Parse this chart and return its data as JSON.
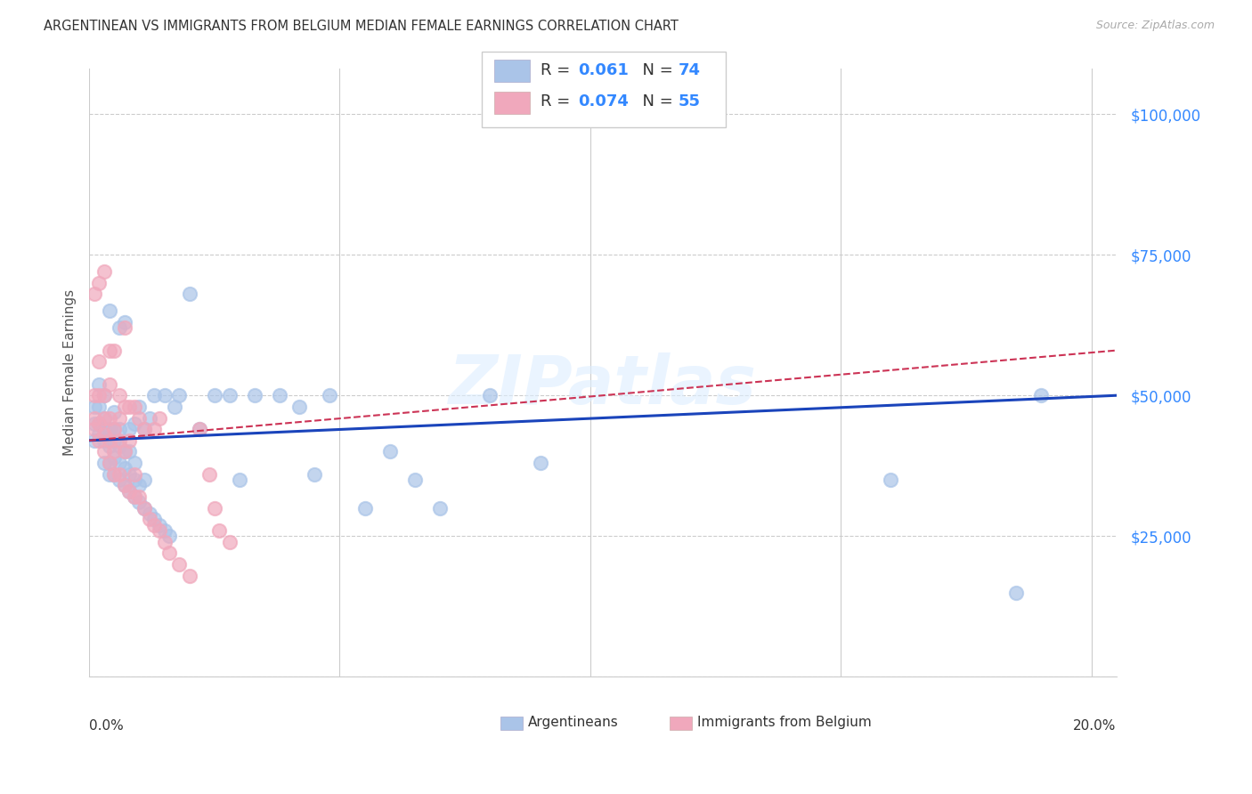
{
  "title": "ARGENTINEAN VS IMMIGRANTS FROM BELGIUM MEDIAN FEMALE EARNINGS CORRELATION CHART",
  "source": "Source: ZipAtlas.com",
  "ylabel": "Median Female Earnings",
  "yticks": [
    0,
    25000,
    50000,
    75000,
    100000
  ],
  "ytick_labels": [
    "",
    "$25,000",
    "$50,000",
    "$75,000",
    "$100,000"
  ],
  "xlim": [
    0.0,
    0.205
  ],
  "ylim": [
    0,
    108000
  ],
  "blue_color": "#aac4e8",
  "pink_color": "#f0a8bc",
  "blue_line_color": "#1a44bb",
  "pink_line_color": "#cc3355",
  "watermark": "ZIPatlas",
  "blue_scatter_x": [
    0.001,
    0.001,
    0.001,
    0.002,
    0.002,
    0.002,
    0.002,
    0.003,
    0.003,
    0.003,
    0.003,
    0.003,
    0.004,
    0.004,
    0.004,
    0.004,
    0.004,
    0.005,
    0.005,
    0.005,
    0.005,
    0.005,
    0.006,
    0.006,
    0.006,
    0.006,
    0.006,
    0.007,
    0.007,
    0.007,
    0.007,
    0.008,
    0.008,
    0.008,
    0.008,
    0.009,
    0.009,
    0.009,
    0.009,
    0.01,
    0.01,
    0.01,
    0.011,
    0.011,
    0.011,
    0.012,
    0.012,
    0.013,
    0.013,
    0.014,
    0.015,
    0.015,
    0.016,
    0.017,
    0.018,
    0.02,
    0.022,
    0.025,
    0.028,
    0.03,
    0.033,
    0.038,
    0.042,
    0.045,
    0.048,
    0.055,
    0.06,
    0.065,
    0.07,
    0.08,
    0.09,
    0.16,
    0.185,
    0.19
  ],
  "blue_scatter_y": [
    42000,
    45000,
    48000,
    43000,
    45000,
    48000,
    52000,
    38000,
    42000,
    44000,
    46000,
    50000,
    36000,
    38000,
    41000,
    44000,
    65000,
    36000,
    39000,
    42000,
    44000,
    47000,
    35000,
    38000,
    41000,
    44000,
    62000,
    34000,
    37000,
    40000,
    63000,
    33000,
    36000,
    40000,
    44000,
    32000,
    35000,
    38000,
    45000,
    31000,
    34000,
    48000,
    30000,
    35000,
    44000,
    29000,
    46000,
    28000,
    50000,
    27000,
    26000,
    50000,
    25000,
    48000,
    50000,
    68000,
    44000,
    50000,
    50000,
    35000,
    50000,
    50000,
    48000,
    36000,
    50000,
    30000,
    40000,
    35000,
    30000,
    50000,
    38000,
    35000,
    15000,
    50000
  ],
  "pink_scatter_x": [
    0.001,
    0.001,
    0.001,
    0.001,
    0.002,
    0.002,
    0.002,
    0.002,
    0.002,
    0.003,
    0.003,
    0.003,
    0.003,
    0.003,
    0.004,
    0.004,
    0.004,
    0.004,
    0.004,
    0.005,
    0.005,
    0.005,
    0.005,
    0.006,
    0.006,
    0.006,
    0.006,
    0.007,
    0.007,
    0.007,
    0.007,
    0.008,
    0.008,
    0.008,
    0.009,
    0.009,
    0.009,
    0.01,
    0.01,
    0.011,
    0.011,
    0.012,
    0.013,
    0.013,
    0.014,
    0.014,
    0.015,
    0.016,
    0.018,
    0.02,
    0.022,
    0.024,
    0.025,
    0.026,
    0.028
  ],
  "pink_scatter_y": [
    44000,
    46000,
    50000,
    68000,
    42000,
    45000,
    50000,
    56000,
    70000,
    40000,
    43000,
    46000,
    50000,
    72000,
    38000,
    42000,
    46000,
    52000,
    58000,
    36000,
    40000,
    44000,
    58000,
    36000,
    42000,
    46000,
    50000,
    34000,
    40000,
    48000,
    62000,
    33000,
    42000,
    48000,
    32000,
    36000,
    48000,
    32000,
    46000,
    30000,
    44000,
    28000,
    27000,
    44000,
    26000,
    46000,
    24000,
    22000,
    20000,
    18000,
    44000,
    36000,
    30000,
    26000,
    24000
  ]
}
